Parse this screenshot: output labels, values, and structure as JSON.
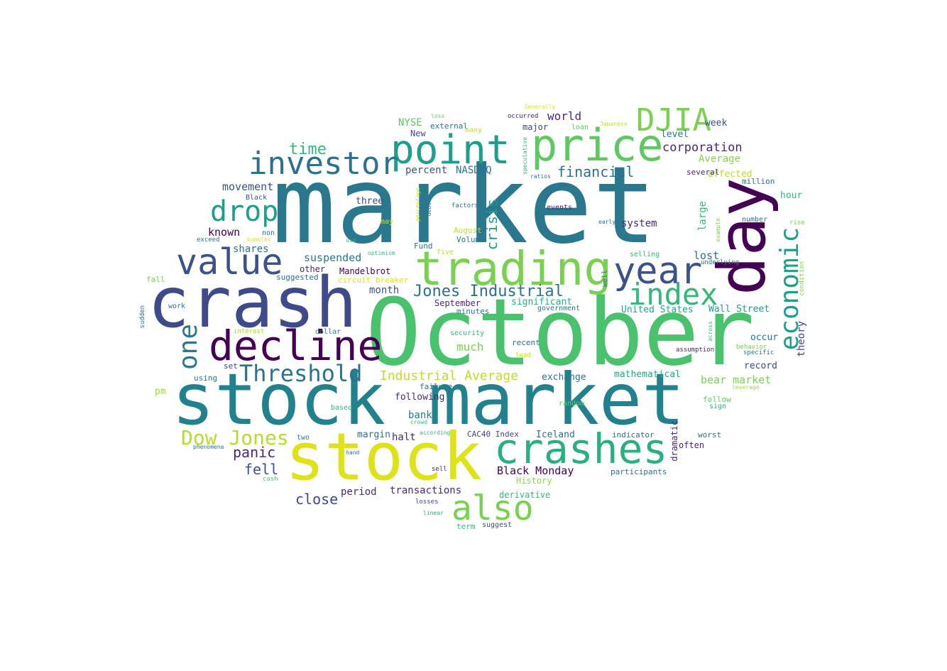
{
  "words": [
    {
      "text": "market"
    },
    {
      "text": "October"
    },
    {
      "text": "stock market"
    },
    {
      "text": "crash"
    },
    {
      "text": "stock"
    },
    {
      "text": "day"
    },
    {
      "text": "trading"
    },
    {
      "text": "price"
    },
    {
      "text": "point"
    },
    {
      "text": "crashes"
    },
    {
      "text": "decline"
    },
    {
      "text": "year"
    },
    {
      "text": "value"
    },
    {
      "text": "investor"
    },
    {
      "text": "DJIA"
    },
    {
      "text": "index"
    },
    {
      "text": "economic"
    },
    {
      "text": "also"
    },
    {
      "text": "drop"
    },
    {
      "text": "one"
    },
    {
      "text": "Threshold"
    },
    {
      "text": "Dow Jones"
    },
    {
      "text": "Jones Industrial"
    },
    {
      "text": "time"
    },
    {
      "text": "financial"
    },
    {
      "text": "corporation"
    },
    {
      "text": "crisis"
    },
    {
      "text": "Industrial Average"
    },
    {
      "text": "panic"
    },
    {
      "text": "fell"
    },
    {
      "text": "close"
    },
    {
      "text": "world"
    },
    {
      "text": "NYSE"
    },
    {
      "text": "percent"
    },
    {
      "text": "NASDAQ"
    },
    {
      "text": "Average"
    },
    {
      "text": "affected"
    },
    {
      "text": "movement"
    },
    {
      "text": "known"
    },
    {
      "text": "shares"
    },
    {
      "text": "suspended"
    },
    {
      "text": "Black Monday"
    },
    {
      "text": "bear market"
    },
    {
      "text": "much"
    },
    {
      "text": "month"
    },
    {
      "text": "three"
    },
    {
      "text": "system"
    },
    {
      "text": "lost"
    },
    {
      "text": "large"
    },
    {
      "text": "major"
    },
    {
      "text": "New"
    },
    {
      "text": "external"
    },
    {
      "text": "week"
    },
    {
      "text": "level"
    },
    {
      "text": "hour"
    },
    {
      "text": "million"
    },
    {
      "text": "several"
    },
    {
      "text": "theory"
    },
    {
      "text": "Wall Street"
    },
    {
      "text": "United States"
    },
    {
      "text": "occur"
    },
    {
      "text": "record"
    },
    {
      "text": "mathematical"
    },
    {
      "text": "exchange"
    },
    {
      "text": "following"
    },
    {
      "text": "bank"
    },
    {
      "text": "margin"
    },
    {
      "text": "halt"
    },
    {
      "text": "period"
    },
    {
      "text": "transactions"
    },
    {
      "text": "Mandelbrot"
    },
    {
      "text": "September"
    },
    {
      "text": "significant"
    },
    {
      "text": "Iceland"
    },
    {
      "text": "CAC40 Index"
    },
    {
      "text": "History"
    },
    {
      "text": "derivative"
    },
    {
      "text": "dramatic"
    },
    {
      "text": "often"
    },
    {
      "text": "worst"
    },
    {
      "text": "indicator"
    },
    {
      "text": "participants"
    },
    {
      "text": "follow"
    },
    {
      "text": "sign"
    },
    {
      "text": "pm"
    },
    {
      "text": "using"
    },
    {
      "text": "set"
    },
    {
      "text": "work"
    },
    {
      "text": "fall"
    },
    {
      "text": "suggested"
    },
    {
      "text": "other"
    },
    {
      "text": "circuit breaker"
    },
    {
      "text": "Fund"
    },
    {
      "text": "five"
    },
    {
      "text": "Volume"
    },
    {
      "text": "August"
    },
    {
      "text": "minutes"
    },
    {
      "text": "government"
    },
    {
      "text": "recent"
    },
    {
      "text": "failure"
    },
    {
      "text": "random"
    },
    {
      "text": "based"
    },
    {
      "text": "two"
    },
    {
      "text": "selling"
    },
    {
      "text": "well"
    },
    {
      "text": "underlying"
    },
    {
      "text": "condition"
    },
    {
      "text": "rise"
    },
    {
      "text": "example"
    },
    {
      "text": "number"
    },
    {
      "text": "assumption"
    },
    {
      "text": "behavior"
    },
    {
      "text": "specific"
    },
    {
      "text": "leverage"
    },
    {
      "text": "across"
    },
    {
      "text": "lead"
    },
    {
      "text": "security"
    },
    {
      "text": "dollar"
    },
    {
      "text": "interest"
    },
    {
      "text": "sudden"
    },
    {
      "text": "Black"
    },
    {
      "text": "non"
    },
    {
      "text": "exceed"
    },
    {
      "text": "bubbles"
    },
    {
      "text": "use"
    },
    {
      "text": "optimism"
    },
    {
      "text": "may"
    },
    {
      "text": "percentage"
    },
    {
      "text": "debt"
    },
    {
      "text": "factors"
    },
    {
      "text": "ratios"
    },
    {
      "text": "speculative"
    },
    {
      "text": "events"
    },
    {
      "text": "early"
    },
    {
      "text": "loan"
    },
    {
      "text": "many"
    },
    {
      "text": "loss"
    },
    {
      "text": "occurred"
    },
    {
      "text": "Generally"
    },
    {
      "text": "Japanese"
    },
    {
      "text": "crowd"
    },
    {
      "text": "according"
    },
    {
      "text": "hand"
    },
    {
      "text": "phenomena"
    },
    {
      "text": "cash"
    },
    {
      "text": "sell"
    },
    {
      "text": "losses"
    },
    {
      "text": "linear"
    },
    {
      "text": "term"
    },
    {
      "text": "suggest"
    }
  ]
}
